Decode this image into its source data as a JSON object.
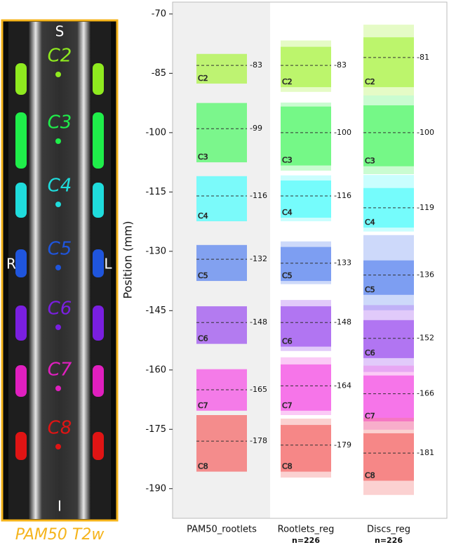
{
  "chart_data": {
    "type": "range_box",
    "ylabel": "Position (mm)",
    "categories": [
      "PAM50_rootlets",
      "Rootlets_reg",
      "Discs_reg"
    ],
    "category_notes": [
      null,
      "n=226",
      "n=226"
    ],
    "levels": [
      "C2",
      "C3",
      "C4",
      "C5",
      "C6",
      "C7",
      "C8"
    ],
    "colors": [
      "#b5f35c",
      "#66f77a",
      "#66fbfb",
      "#6f93f0",
      "#a866f0",
      "#f466e6",
      "#f47a7a"
    ],
    "ylim": [
      -197.5,
      -67
    ],
    "yticks": [
      -70,
      -85,
      -100,
      -115,
      -130,
      -145,
      -160,
      -175,
      -190
    ],
    "groups": [
      {
        "mean": [
          -83,
          -99,
          -116,
          -132,
          -148,
          -165,
          -178
        ],
        "inner_low": [
          -87.6,
          -107.5,
          -122.4,
          -137.5,
          -153.4,
          -170.3,
          -185.7
        ],
        "inner_high": [
          -80.1,
          -92.5,
          -111,
          -128.4,
          -143.9,
          -159.8,
          -171.4
        ]
      },
      {
        "mean": [
          -83,
          -100,
          -116,
          -133,
          -148,
          -164,
          -179
        ],
        "inner_low": [
          -88.5,
          -108.3,
          -121.5,
          -137.5,
          -154.1,
          -170.3,
          -185.7
        ],
        "inner_high": [
          -78.3,
          -93.4,
          -112.1,
          -128.9,
          -143.9,
          -158.6,
          -173.9
        ],
        "outer_low": [
          -89.7,
          -109.6,
          -122.4,
          -138.3,
          -155.2,
          -171.4,
          -187.2
        ],
        "outer_high": [
          -76.7,
          -92.4,
          -110.8,
          -127.5,
          -142.3,
          -156.8,
          -172.3
        ]
      },
      {
        "mean": [
          -81,
          -100,
          -119,
          -136,
          -152,
          -166,
          -181
        ],
        "inner_low": [
          -88.5,
          -108.5,
          -124,
          -141,
          -157,
          -173,
          -188
        ],
        "inner_high": [
          -75.9,
          -93.1,
          -114,
          -132.3,
          -147.4,
          -161.4,
          -176
        ],
        "outer_low": [
          -90.6,
          -110.5,
          -125,
          -144.9,
          -160.5,
          -175.1,
          -191.6
        ],
        "outer_high": [
          -72.7,
          -90.6,
          -110.7,
          -125.9,
          -143.6,
          -158.9,
          -172.1
        ]
      }
    ]
  },
  "image_panel": {
    "caption": "PAM50 T2w",
    "top": "S",
    "bottom": "I",
    "left": "R",
    "right": "L",
    "levels": [
      "C2",
      "C3",
      "C4",
      "C5",
      "C6",
      "C7",
      "C8"
    ],
    "colors": [
      "#8fea1f",
      "#1fee4a",
      "#1fdcdc",
      "#1f55dd",
      "#7a1fe0",
      "#e01fbf",
      "#e01414"
    ]
  }
}
